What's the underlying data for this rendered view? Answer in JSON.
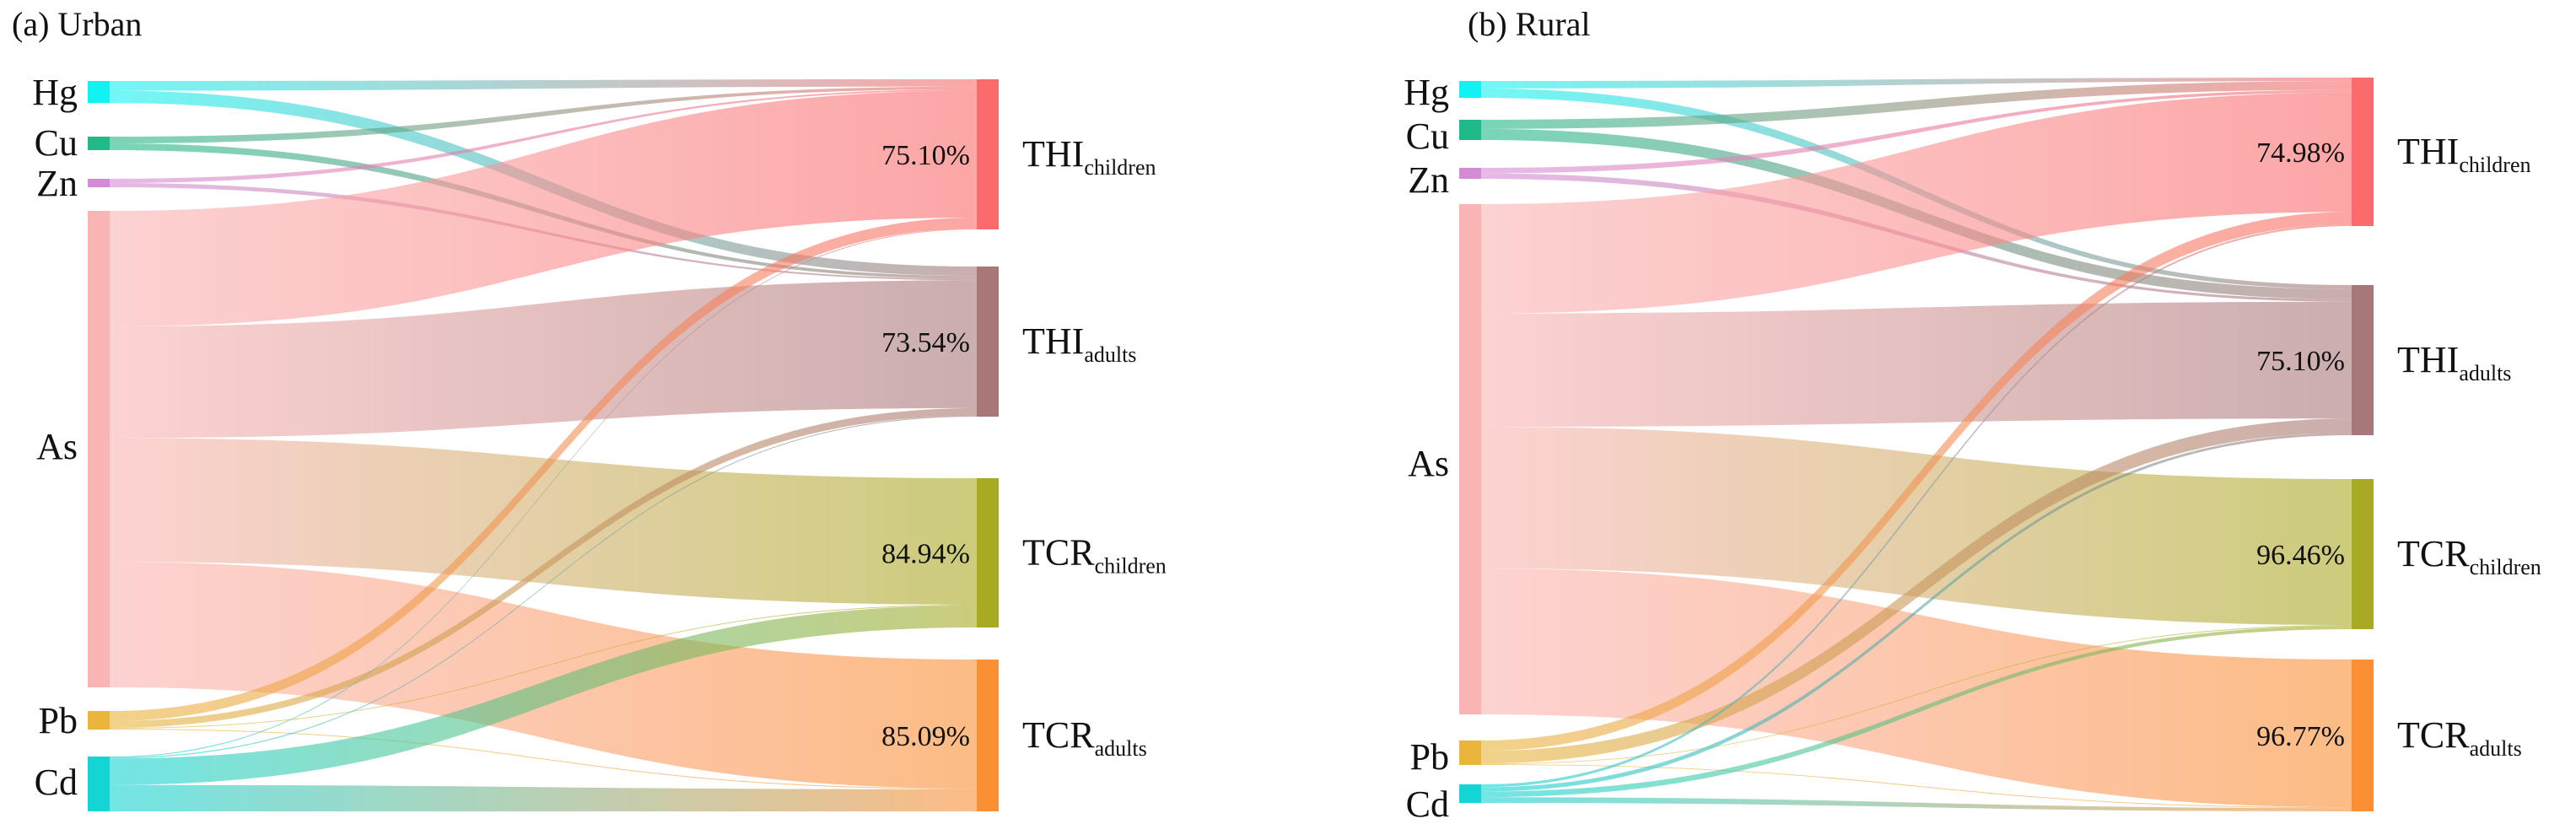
{
  "panels": [
    {
      "title": "(a) Urban",
      "sources": [
        {
          "id": "Hg",
          "label": "Hg",
          "color": "#12f2f2"
        },
        {
          "id": "Cu",
          "label": "Cu",
          "color": "#1fb98a"
        },
        {
          "id": "Zn",
          "label": "Zn",
          "color": "#d58ad5"
        },
        {
          "id": "As",
          "label": "As",
          "color": "#fbb4b4"
        },
        {
          "id": "Pb",
          "label": "Pb",
          "color": "#e9b53a"
        },
        {
          "id": "Cd",
          "label": "Cd",
          "color": "#14d4d4"
        }
      ],
      "targets": [
        {
          "id": "THIc",
          "main": "THI",
          "sub": "children",
          "color": "#fb6b6b",
          "percent": "75.10%"
        },
        {
          "id": "THIa",
          "main": "THI",
          "sub": "adults",
          "color": "#a87777",
          "percent": "73.54%"
        },
        {
          "id": "TCRc",
          "main": "TCR",
          "sub": "children",
          "color": "#a9aa24",
          "percent": "84.94%"
        },
        {
          "id": "TCRa",
          "main": "TCR",
          "sub": "adults",
          "color": "#fb8f34",
          "percent": "85.09%"
        }
      ],
      "links": [
        {
          "source": "Hg",
          "target": "THIc",
          "value": 8
        },
        {
          "source": "Hg",
          "target": "THIa",
          "value": 10
        },
        {
          "source": "Cu",
          "target": "THIc",
          "value": 3
        },
        {
          "source": "Cu",
          "target": "THIa",
          "value": 3
        },
        {
          "source": "Zn",
          "target": "THIc",
          "value": 1.5
        },
        {
          "source": "Zn",
          "target": "THIa",
          "value": 1.5
        },
        {
          "source": "As",
          "target": "THIc",
          "value": 140
        },
        {
          "source": "As",
          "target": "THIa",
          "value": 135
        },
        {
          "source": "As",
          "target": "TCRc",
          "value": 150
        },
        {
          "source": "As",
          "target": "TCRa",
          "value": 152
        },
        {
          "source": "Pb",
          "target": "THIc",
          "value": 12
        },
        {
          "source": "Pb",
          "target": "THIa",
          "value": 8
        },
        {
          "source": "Pb",
          "target": "TCRc",
          "value": 1
        },
        {
          "source": "Pb",
          "target": "TCRa",
          "value": 1
        },
        {
          "source": "Cd",
          "target": "THIc",
          "value": 1
        },
        {
          "source": "Cd",
          "target": "THIa",
          "value": 1
        },
        {
          "source": "Cd",
          "target": "TCRc",
          "value": 26
        },
        {
          "source": "Cd",
          "target": "TCRa",
          "value": 26
        }
      ]
    },
    {
      "title": "(b) Rural",
      "sources": [
        {
          "id": "Hg",
          "label": "Hg",
          "color": "#12f2f2"
        },
        {
          "id": "Cu",
          "label": "Cu",
          "color": "#1fb98a"
        },
        {
          "id": "Zn",
          "label": "Zn",
          "color": "#d58ad5"
        },
        {
          "id": "As",
          "label": "As",
          "color": "#fbb4b4"
        },
        {
          "id": "Pb",
          "label": "Pb",
          "color": "#e9b53a"
        },
        {
          "id": "Cd",
          "label": "Cd",
          "color": "#14d4d4"
        }
      ],
      "targets": [
        {
          "id": "THIc",
          "main": "THI",
          "sub": "children",
          "color": "#fb6b6b",
          "percent": "74.98%"
        },
        {
          "id": "THIa",
          "main": "THI",
          "sub": "adults",
          "color": "#a87777",
          "percent": "75.10%"
        },
        {
          "id": "TCRc",
          "main": "TCR",
          "sub": "children",
          "color": "#a9aa24",
          "percent": "96.46%"
        },
        {
          "id": "TCRa",
          "main": "TCR",
          "sub": "adults",
          "color": "#fb8f34",
          "percent": "96.77%"
        }
      ],
      "links": [
        {
          "source": "Hg",
          "target": "THIc",
          "value": 4
        },
        {
          "source": "Hg",
          "target": "THIa",
          "value": 5
        },
        {
          "source": "Cu",
          "target": "THIc",
          "value": 10
        },
        {
          "source": "Cu",
          "target": "THIa",
          "value": 12
        },
        {
          "source": "Zn",
          "target": "THIc",
          "value": 3
        },
        {
          "source": "Zn",
          "target": "THIa",
          "value": 3
        },
        {
          "source": "As",
          "target": "THIc",
          "value": 135
        },
        {
          "source": "As",
          "target": "THIa",
          "value": 140
        },
        {
          "source": "As",
          "target": "TCRc",
          "value": 175
        },
        {
          "source": "As",
          "target": "TCRa",
          "value": 180
        },
        {
          "source": "Pb",
          "target": "THIc",
          "value": 14
        },
        {
          "source": "Pb",
          "target": "THIa",
          "value": 17
        },
        {
          "source": "Pb",
          "target": "TCRc",
          "value": 1
        },
        {
          "source": "Pb",
          "target": "TCRa",
          "value": 1
        },
        {
          "source": "Cd",
          "target": "THIc",
          "value": 2
        },
        {
          "source": "Cd",
          "target": "THIa",
          "value": 3
        },
        {
          "source": "Cd",
          "target": "TCRc",
          "value": 4
        },
        {
          "source": "Cd",
          "target": "TCRa",
          "value": 4
        }
      ]
    }
  ]
}
